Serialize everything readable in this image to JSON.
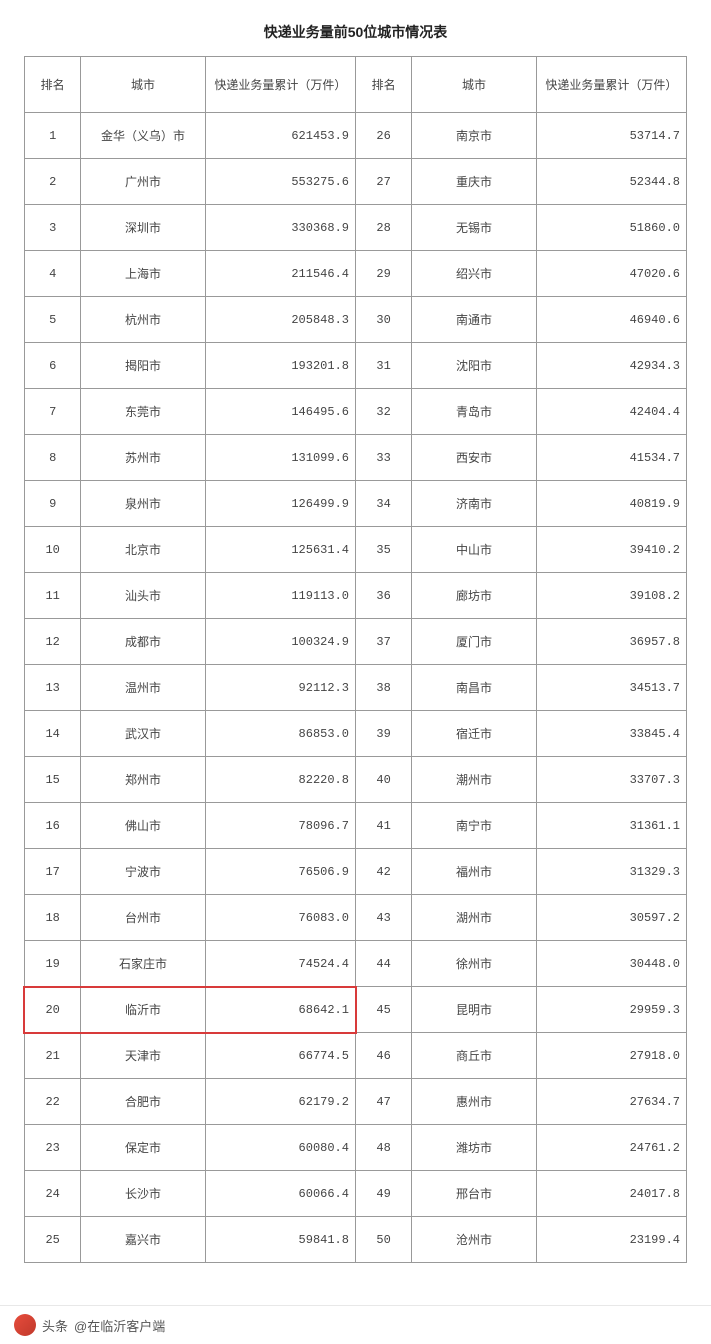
{
  "title": "快递业务量前50位城市情况表",
  "table": {
    "headers": {
      "rank": "排名",
      "city": "城市",
      "volume": "快递业务量累计（万件）"
    },
    "left_rows": [
      {
        "rank": "1",
        "city": "金华（义乌）市",
        "volume": "621453.9"
      },
      {
        "rank": "2",
        "city": "广州市",
        "volume": "553275.6"
      },
      {
        "rank": "3",
        "city": "深圳市",
        "volume": "330368.9"
      },
      {
        "rank": "4",
        "city": "上海市",
        "volume": "211546.4"
      },
      {
        "rank": "5",
        "city": "杭州市",
        "volume": "205848.3"
      },
      {
        "rank": "6",
        "city": "揭阳市",
        "volume": "193201.8"
      },
      {
        "rank": "7",
        "city": "东莞市",
        "volume": "146495.6"
      },
      {
        "rank": "8",
        "city": "苏州市",
        "volume": "131099.6"
      },
      {
        "rank": "9",
        "city": "泉州市",
        "volume": "126499.9"
      },
      {
        "rank": "10",
        "city": "北京市",
        "volume": "125631.4"
      },
      {
        "rank": "11",
        "city": "汕头市",
        "volume": "119113.0"
      },
      {
        "rank": "12",
        "city": "成都市",
        "volume": "100324.9"
      },
      {
        "rank": "13",
        "city": "温州市",
        "volume": "92112.3"
      },
      {
        "rank": "14",
        "city": "武汉市",
        "volume": "86853.0"
      },
      {
        "rank": "15",
        "city": "郑州市",
        "volume": "82220.8"
      },
      {
        "rank": "16",
        "city": "佛山市",
        "volume": "78096.7"
      },
      {
        "rank": "17",
        "city": "宁波市",
        "volume": "76506.9"
      },
      {
        "rank": "18",
        "city": "台州市",
        "volume": "76083.0"
      },
      {
        "rank": "19",
        "city": "石家庄市",
        "volume": "74524.4"
      },
      {
        "rank": "20",
        "city": "临沂市",
        "volume": "68642.1"
      },
      {
        "rank": "21",
        "city": "天津市",
        "volume": "66774.5"
      },
      {
        "rank": "22",
        "city": "合肥市",
        "volume": "62179.2"
      },
      {
        "rank": "23",
        "city": "保定市",
        "volume": "60080.4"
      },
      {
        "rank": "24",
        "city": "长沙市",
        "volume": "60066.4"
      },
      {
        "rank": "25",
        "city": "嘉兴市",
        "volume": "59841.8"
      }
    ],
    "right_rows": [
      {
        "rank": "26",
        "city": "南京市",
        "volume": "53714.7"
      },
      {
        "rank": "27",
        "city": "重庆市",
        "volume": "52344.8"
      },
      {
        "rank": "28",
        "city": "无锡市",
        "volume": "51860.0"
      },
      {
        "rank": "29",
        "city": "绍兴市",
        "volume": "47020.6"
      },
      {
        "rank": "30",
        "city": "南通市",
        "volume": "46940.6"
      },
      {
        "rank": "31",
        "city": "沈阳市",
        "volume": "42934.3"
      },
      {
        "rank": "32",
        "city": "青岛市",
        "volume": "42404.4"
      },
      {
        "rank": "33",
        "city": "西安市",
        "volume": "41534.7"
      },
      {
        "rank": "34",
        "city": "济南市",
        "volume": "40819.9"
      },
      {
        "rank": "35",
        "city": "中山市",
        "volume": "39410.2"
      },
      {
        "rank": "36",
        "city": "廊坊市",
        "volume": "39108.2"
      },
      {
        "rank": "37",
        "city": "厦门市",
        "volume": "36957.8"
      },
      {
        "rank": "38",
        "city": "南昌市",
        "volume": "34513.7"
      },
      {
        "rank": "39",
        "city": "宿迁市",
        "volume": "33845.4"
      },
      {
        "rank": "40",
        "city": "潮州市",
        "volume": "33707.3"
      },
      {
        "rank": "41",
        "city": "南宁市",
        "volume": "31361.1"
      },
      {
        "rank": "42",
        "city": "福州市",
        "volume": "31329.3"
      },
      {
        "rank": "43",
        "city": "湖州市",
        "volume": "30597.2"
      },
      {
        "rank": "44",
        "city": "徐州市",
        "volume": "30448.0"
      },
      {
        "rank": "45",
        "city": "昆明市",
        "volume": "29959.3"
      },
      {
        "rank": "46",
        "city": "商丘市",
        "volume": "27918.0"
      },
      {
        "rank": "47",
        "city": "惠州市",
        "volume": "27634.7"
      },
      {
        "rank": "48",
        "city": "潍坊市",
        "volume": "24761.2"
      },
      {
        "rank": "49",
        "city": "邢台市",
        "volume": "24017.8"
      },
      {
        "rank": "50",
        "city": "沧州市",
        "volume": "23199.4"
      }
    ],
    "highlight_row_index": 19,
    "highlight_color": "#d83a3a"
  },
  "footer": {
    "prefix": "头条",
    "author": "@在临沂客户端"
  }
}
